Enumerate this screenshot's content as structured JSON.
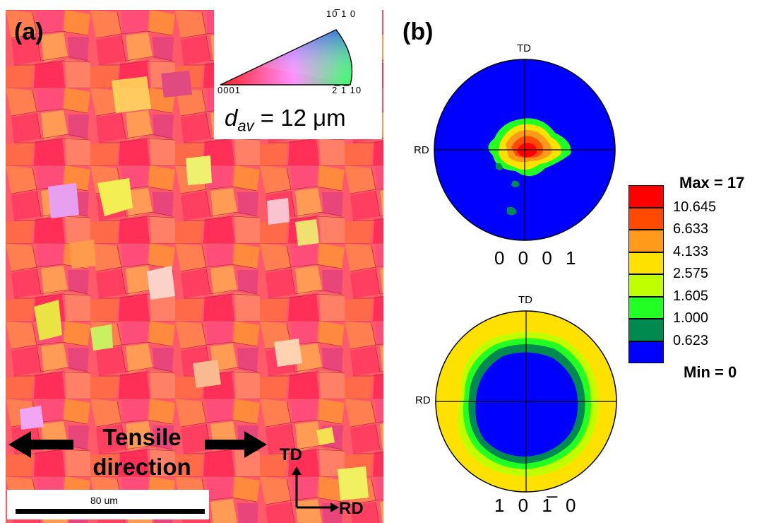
{
  "panel_a": {
    "label": "(a)",
    "ipf_corners": {
      "top": "10̅ 1 0",
      "left": "0001",
      "right": "2̅ 1̅ 10"
    },
    "grain_size_symbol": "d",
    "grain_size_subscript": "av",
    "grain_size_value": "= 12 μm",
    "tensile_label_line1": "Tensile",
    "tensile_label_line2": "direction",
    "scale_bar_label": "80 um",
    "axis_td": "TD",
    "axis_rd": "RD"
  },
  "panel_b": {
    "label": "(b)",
    "pole_figure_1": {
      "td": "TD",
      "rd": "RD",
      "label": "0 0 0 1"
    },
    "pole_figure_2": {
      "td": "TD",
      "rd": "RD",
      "label": "1 0 1̅ 0"
    },
    "legend": {
      "max": "Max = 17",
      "min": "Min = 0",
      "values": [
        "10.645",
        "6.633",
        "4.133",
        "2.575",
        "1.605",
        "1.000",
        "0.623"
      ],
      "colors": [
        "#ff0000",
        "#ff4a00",
        "#ff9a1a",
        "#ffe100",
        "#bfff00",
        "#22ff22",
        "#008a50",
        "#0000ff"
      ]
    }
  }
}
